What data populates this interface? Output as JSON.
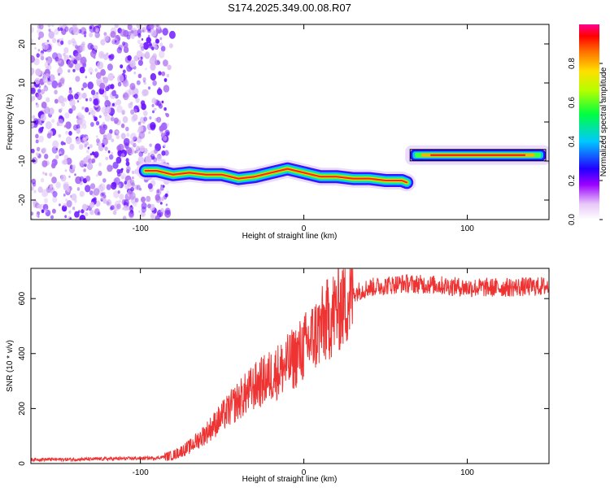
{
  "title": "S174.2025.349.00.08.R07",
  "chart_data": [
    {
      "type": "heatmap",
      "title": "S174.2025.349.00.08.R07",
      "xlabel": "Height of straight line (km)",
      "ylabel": "Frequency (Hz)",
      "xlim": [
        -167,
        150
      ],
      "ylim": [
        -25,
        25
      ],
      "xticks": [
        -100,
        0,
        100
      ],
      "yticks": [
        20,
        10,
        0,
        -10,
        -20
      ],
      "colorbar": {
        "label": "Normalized spectral amplitude",
        "range": [
          0,
          1
        ],
        "ticks": [
          "0.0",
          "0.2",
          "0.4",
          "0.6",
          "0.8"
        ],
        "tick_values": [
          0,
          0.2,
          0.4,
          0.6,
          0.8
        ]
      },
      "noise_region_x": [
        -167,
        -83
      ],
      "track_segment_1": {
        "x": [
          -97,
          -90,
          -80,
          -70,
          -60,
          -50,
          -40,
          -30,
          -20,
          -10,
          0,
          10,
          20,
          30,
          40,
          50,
          60,
          63
        ],
        "frequency": [
          -12.5,
          -12.5,
          -13.5,
          -13,
          -13.5,
          -13.5,
          -14.5,
          -14,
          -13,
          -12,
          -13,
          -14,
          -14,
          -14.5,
          -14.5,
          -15,
          -15,
          -15.5
        ]
      },
      "track_segment_2": {
        "x": [
          65,
          148
        ],
        "frequency": [
          -8.5,
          -8.5
        ]
      }
    },
    {
      "type": "line",
      "xlabel": "Height of straight line (km)",
      "ylabel": "SNR (10 * v/v)",
      "xlim": [
        -167,
        150
      ],
      "ylim": [
        0,
        710
      ],
      "xticks": [
        -100,
        0,
        100
      ],
      "yticks": [
        0,
        200,
        400,
        600
      ],
      "series": [
        {
          "name": "SNR",
          "color": "#ee3333",
          "x": [
            -167,
            -140,
            -110,
            -90,
            -80,
            -70,
            -60,
            -50,
            -40,
            -30,
            -20,
            -10,
            0,
            10,
            20,
            30,
            40,
            60,
            80,
            100,
            120,
            150
          ],
          "values": [
            15,
            15,
            18,
            20,
            30,
            60,
            110,
            170,
            230,
            280,
            320,
            360,
            420,
            490,
            560,
            620,
            640,
            655,
            650,
            640,
            640,
            645
          ]
        }
      ]
    }
  ]
}
